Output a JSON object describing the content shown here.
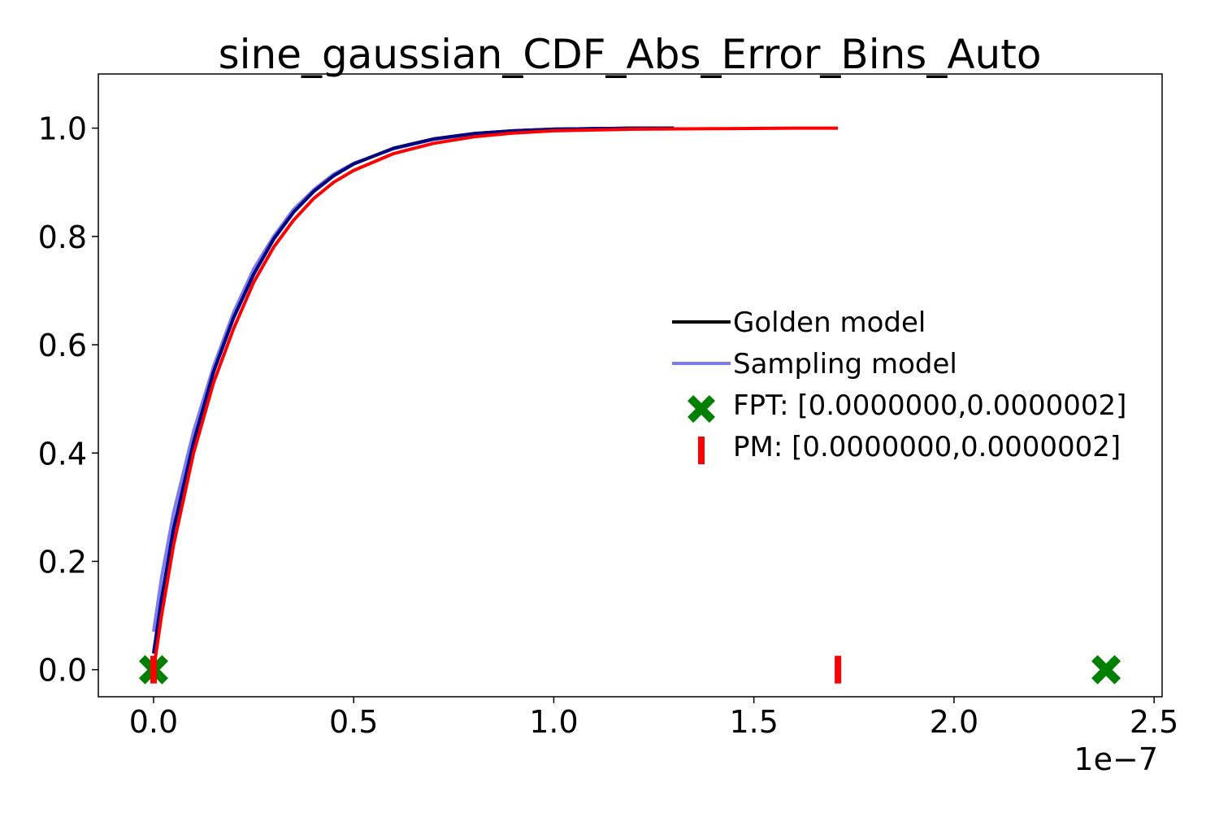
{
  "chart_data": {
    "type": "line",
    "title": "sine_gaussian_CDF_Abs_Error_Bins_Auto",
    "xlabel": "",
    "ylabel": "",
    "x_offset_label": "1e−7",
    "xlim": [
      -0.138,
      2.52
    ],
    "ylim": [
      -0.05,
      1.1
    ],
    "xticks": [
      0.0,
      0.5,
      1.0,
      1.5,
      2.0,
      2.5
    ],
    "xtick_labels": [
      "0.0",
      "0.5",
      "1.0",
      "1.5",
      "2.0",
      "2.5"
    ],
    "yticks": [
      0.0,
      0.2,
      0.4,
      0.6,
      0.8,
      1.0
    ],
    "ytick_labels": [
      "0.0",
      "0.2",
      "0.4",
      "0.6",
      "0.8",
      "1.0"
    ],
    "grid": false,
    "legend_position": "center-right",
    "series": [
      {
        "name": "Sampling model",
        "legend_label": "Sampling model",
        "kind": "line",
        "color": "#7b7bf2",
        "x": [
          0.0,
          0.02,
          0.05,
          0.1,
          0.15,
          0.2,
          0.25,
          0.3,
          0.35,
          0.4,
          0.45,
          0.5,
          0.6,
          0.7,
          0.8,
          0.9,
          1.0,
          1.1,
          1.2
        ],
        "y": [
          0.07,
          0.17,
          0.29,
          0.44,
          0.56,
          0.66,
          0.74,
          0.8,
          0.85,
          0.886,
          0.915,
          0.935,
          0.962,
          0.979,
          0.989,
          0.995,
          0.998,
          0.999,
          1.0
        ]
      },
      {
        "name": "Golden model",
        "legend_label": "Golden model",
        "kind": "line",
        "color": "#000000",
        "x": [
          0.0,
          0.02,
          0.05,
          0.1,
          0.15,
          0.2,
          0.25,
          0.3,
          0.35,
          0.4,
          0.45,
          0.5,
          0.6,
          0.7,
          0.8,
          0.9,
          1.0,
          1.1,
          1.2,
          1.3
        ],
        "y": [
          0.03,
          0.13,
          0.26,
          0.42,
          0.55,
          0.65,
          0.73,
          0.795,
          0.845,
          0.883,
          0.912,
          0.934,
          0.963,
          0.98,
          0.99,
          0.995,
          0.998,
          0.999,
          1.0,
          1.0
        ]
      },
      {
        "name": "Golden model (overlay)",
        "kind": "line",
        "color": "#000080",
        "x": [
          0.0,
          0.02,
          0.05,
          0.1,
          0.15,
          0.2,
          0.25,
          0.3,
          0.35,
          0.4,
          0.45,
          0.5,
          0.6,
          0.7,
          0.8,
          0.9,
          1.0,
          1.1,
          1.2,
          1.3
        ],
        "y": [
          0.03,
          0.13,
          0.26,
          0.42,
          0.55,
          0.65,
          0.73,
          0.795,
          0.845,
          0.883,
          0.912,
          0.934,
          0.963,
          0.98,
          0.99,
          0.995,
          0.998,
          0.999,
          1.0,
          1.0
        ]
      },
      {
        "name": "PM CDF",
        "kind": "line",
        "color": "#ff0000",
        "x": [
          0.0,
          0.02,
          0.05,
          0.1,
          0.15,
          0.2,
          0.25,
          0.3,
          0.35,
          0.4,
          0.45,
          0.5,
          0.6,
          0.7,
          0.8,
          0.9,
          1.0,
          1.2,
          1.4,
          1.6,
          1.71
        ],
        "y": [
          0.0,
          0.1,
          0.23,
          0.4,
          0.53,
          0.63,
          0.715,
          0.78,
          0.83,
          0.87,
          0.9,
          0.922,
          0.953,
          0.972,
          0.984,
          0.991,
          0.995,
          0.998,
          0.999,
          1.0,
          1.0
        ]
      },
      {
        "name": "FPT",
        "legend_label": "FPT: [0.0000000,0.0000002]",
        "kind": "markers",
        "marker": "X",
        "color": "#008000",
        "x": [
          0.0,
          2.38
        ],
        "y": [
          0.0,
          0.0
        ]
      },
      {
        "name": "PM",
        "legend_label": "PM: [0.0000000,0.0000002]",
        "kind": "markers",
        "marker": "|",
        "color": "#ff0000",
        "x": [
          0.0,
          1.71
        ],
        "y": [
          0.0,
          0.0
        ]
      }
    ]
  }
}
